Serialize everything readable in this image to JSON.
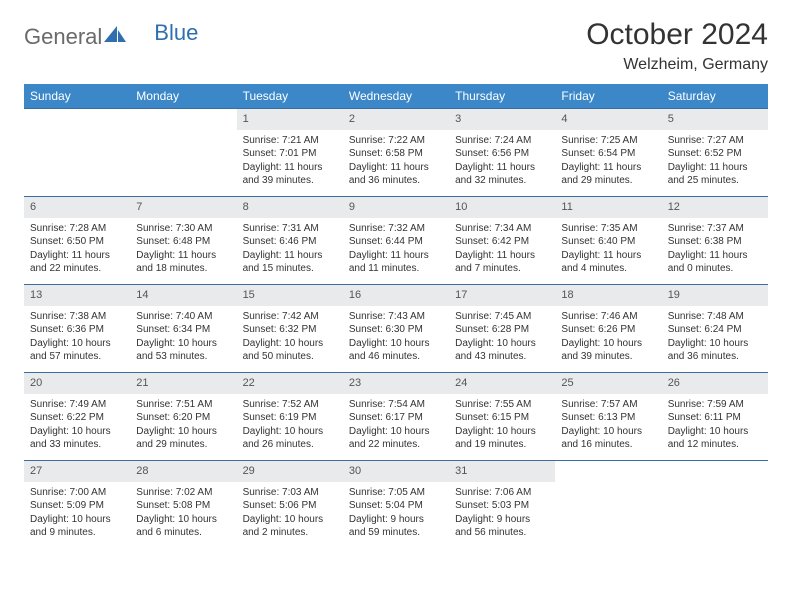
{
  "brand": {
    "part1": "General",
    "part2": "Blue"
  },
  "title": {
    "month": "October 2024",
    "location": "Welzheim, Germany"
  },
  "headers": [
    "Sunday",
    "Monday",
    "Tuesday",
    "Wednesday",
    "Thursday",
    "Friday",
    "Saturday"
  ],
  "colors": {
    "header_bg": "#3b87c8",
    "header_text": "#ffffff",
    "week_border": "#3b6ea0",
    "daynum_bg": "#e9eaec",
    "logo_blue": "#2f6fb0"
  },
  "weeks": [
    [
      {
        "n": "",
        "sr": "",
        "ss": "",
        "dl": ""
      },
      {
        "n": "",
        "sr": "",
        "ss": "",
        "dl": ""
      },
      {
        "n": "1",
        "sr": "Sunrise: 7:21 AM",
        "ss": "Sunset: 7:01 PM",
        "dl": "Daylight: 11 hours and 39 minutes."
      },
      {
        "n": "2",
        "sr": "Sunrise: 7:22 AM",
        "ss": "Sunset: 6:58 PM",
        "dl": "Daylight: 11 hours and 36 minutes."
      },
      {
        "n": "3",
        "sr": "Sunrise: 7:24 AM",
        "ss": "Sunset: 6:56 PM",
        "dl": "Daylight: 11 hours and 32 minutes."
      },
      {
        "n": "4",
        "sr": "Sunrise: 7:25 AM",
        "ss": "Sunset: 6:54 PM",
        "dl": "Daylight: 11 hours and 29 minutes."
      },
      {
        "n": "5",
        "sr": "Sunrise: 7:27 AM",
        "ss": "Sunset: 6:52 PM",
        "dl": "Daylight: 11 hours and 25 minutes."
      }
    ],
    [
      {
        "n": "6",
        "sr": "Sunrise: 7:28 AM",
        "ss": "Sunset: 6:50 PM",
        "dl": "Daylight: 11 hours and 22 minutes."
      },
      {
        "n": "7",
        "sr": "Sunrise: 7:30 AM",
        "ss": "Sunset: 6:48 PM",
        "dl": "Daylight: 11 hours and 18 minutes."
      },
      {
        "n": "8",
        "sr": "Sunrise: 7:31 AM",
        "ss": "Sunset: 6:46 PM",
        "dl": "Daylight: 11 hours and 15 minutes."
      },
      {
        "n": "9",
        "sr": "Sunrise: 7:32 AM",
        "ss": "Sunset: 6:44 PM",
        "dl": "Daylight: 11 hours and 11 minutes."
      },
      {
        "n": "10",
        "sr": "Sunrise: 7:34 AM",
        "ss": "Sunset: 6:42 PM",
        "dl": "Daylight: 11 hours and 7 minutes."
      },
      {
        "n": "11",
        "sr": "Sunrise: 7:35 AM",
        "ss": "Sunset: 6:40 PM",
        "dl": "Daylight: 11 hours and 4 minutes."
      },
      {
        "n": "12",
        "sr": "Sunrise: 7:37 AM",
        "ss": "Sunset: 6:38 PM",
        "dl": "Daylight: 11 hours and 0 minutes."
      }
    ],
    [
      {
        "n": "13",
        "sr": "Sunrise: 7:38 AM",
        "ss": "Sunset: 6:36 PM",
        "dl": "Daylight: 10 hours and 57 minutes."
      },
      {
        "n": "14",
        "sr": "Sunrise: 7:40 AM",
        "ss": "Sunset: 6:34 PM",
        "dl": "Daylight: 10 hours and 53 minutes."
      },
      {
        "n": "15",
        "sr": "Sunrise: 7:42 AM",
        "ss": "Sunset: 6:32 PM",
        "dl": "Daylight: 10 hours and 50 minutes."
      },
      {
        "n": "16",
        "sr": "Sunrise: 7:43 AM",
        "ss": "Sunset: 6:30 PM",
        "dl": "Daylight: 10 hours and 46 minutes."
      },
      {
        "n": "17",
        "sr": "Sunrise: 7:45 AM",
        "ss": "Sunset: 6:28 PM",
        "dl": "Daylight: 10 hours and 43 minutes."
      },
      {
        "n": "18",
        "sr": "Sunrise: 7:46 AM",
        "ss": "Sunset: 6:26 PM",
        "dl": "Daylight: 10 hours and 39 minutes."
      },
      {
        "n": "19",
        "sr": "Sunrise: 7:48 AM",
        "ss": "Sunset: 6:24 PM",
        "dl": "Daylight: 10 hours and 36 minutes."
      }
    ],
    [
      {
        "n": "20",
        "sr": "Sunrise: 7:49 AM",
        "ss": "Sunset: 6:22 PM",
        "dl": "Daylight: 10 hours and 33 minutes."
      },
      {
        "n": "21",
        "sr": "Sunrise: 7:51 AM",
        "ss": "Sunset: 6:20 PM",
        "dl": "Daylight: 10 hours and 29 minutes."
      },
      {
        "n": "22",
        "sr": "Sunrise: 7:52 AM",
        "ss": "Sunset: 6:19 PM",
        "dl": "Daylight: 10 hours and 26 minutes."
      },
      {
        "n": "23",
        "sr": "Sunrise: 7:54 AM",
        "ss": "Sunset: 6:17 PM",
        "dl": "Daylight: 10 hours and 22 minutes."
      },
      {
        "n": "24",
        "sr": "Sunrise: 7:55 AM",
        "ss": "Sunset: 6:15 PM",
        "dl": "Daylight: 10 hours and 19 minutes."
      },
      {
        "n": "25",
        "sr": "Sunrise: 7:57 AM",
        "ss": "Sunset: 6:13 PM",
        "dl": "Daylight: 10 hours and 16 minutes."
      },
      {
        "n": "26",
        "sr": "Sunrise: 7:59 AM",
        "ss": "Sunset: 6:11 PM",
        "dl": "Daylight: 10 hours and 12 minutes."
      }
    ],
    [
      {
        "n": "27",
        "sr": "Sunrise: 7:00 AM",
        "ss": "Sunset: 5:09 PM",
        "dl": "Daylight: 10 hours and 9 minutes."
      },
      {
        "n": "28",
        "sr": "Sunrise: 7:02 AM",
        "ss": "Sunset: 5:08 PM",
        "dl": "Daylight: 10 hours and 6 minutes."
      },
      {
        "n": "29",
        "sr": "Sunrise: 7:03 AM",
        "ss": "Sunset: 5:06 PM",
        "dl": "Daylight: 10 hours and 2 minutes."
      },
      {
        "n": "30",
        "sr": "Sunrise: 7:05 AM",
        "ss": "Sunset: 5:04 PM",
        "dl": "Daylight: 9 hours and 59 minutes."
      },
      {
        "n": "31",
        "sr": "Sunrise: 7:06 AM",
        "ss": "Sunset: 5:03 PM",
        "dl": "Daylight: 9 hours and 56 minutes."
      },
      {
        "n": "",
        "sr": "",
        "ss": "",
        "dl": ""
      },
      {
        "n": "",
        "sr": "",
        "ss": "",
        "dl": ""
      }
    ]
  ]
}
